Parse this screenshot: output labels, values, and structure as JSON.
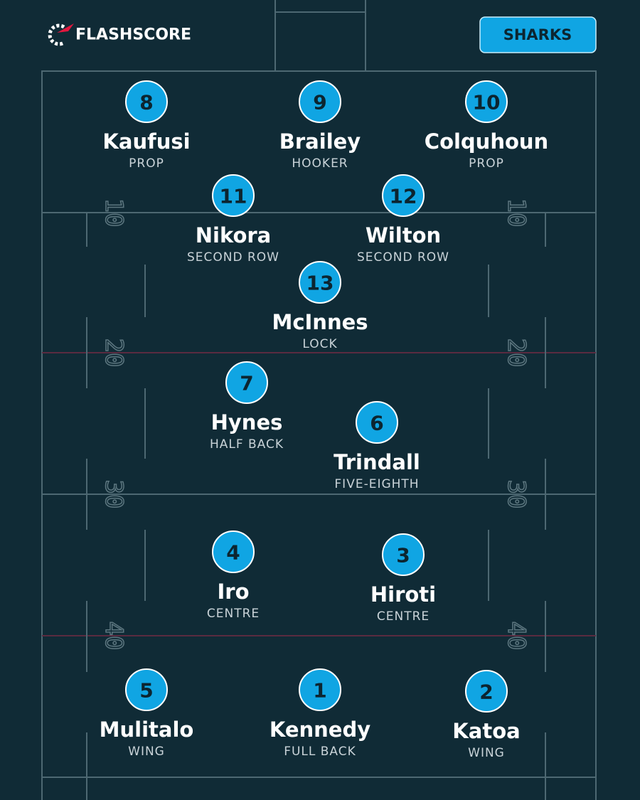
{
  "header": {
    "brand": "FLASHSCORE",
    "team": "SHARKS"
  },
  "field": {
    "yard_markers": [
      "10",
      "20",
      "30",
      "40"
    ]
  },
  "players": [
    {
      "number": 8,
      "name": "Kaufusi",
      "position": "PROP"
    },
    {
      "number": 9,
      "name": "Brailey",
      "position": "HOOKER"
    },
    {
      "number": 10,
      "name": "Colquhoun",
      "position": "PROP"
    },
    {
      "number": 11,
      "name": "Nikora",
      "position": "SECOND ROW"
    },
    {
      "number": 12,
      "name": "Wilton",
      "position": "SECOND ROW"
    },
    {
      "number": 13,
      "name": "McInnes",
      "position": "LOCK"
    },
    {
      "number": 7,
      "name": "Hynes",
      "position": "HALF BACK"
    },
    {
      "number": 6,
      "name": "Trindall",
      "position": "FIVE-EIGHTH"
    },
    {
      "number": 4,
      "name": "Iro",
      "position": "CENTRE"
    },
    {
      "number": 3,
      "name": "Hiroti",
      "position": "CENTRE"
    },
    {
      "number": 5,
      "name": "Mulitalo",
      "position": "WING"
    },
    {
      "number": 1,
      "name": "Kennedy",
      "position": "FULL BACK"
    },
    {
      "number": 2,
      "name": "Katoa",
      "position": "WING"
    }
  ]
}
